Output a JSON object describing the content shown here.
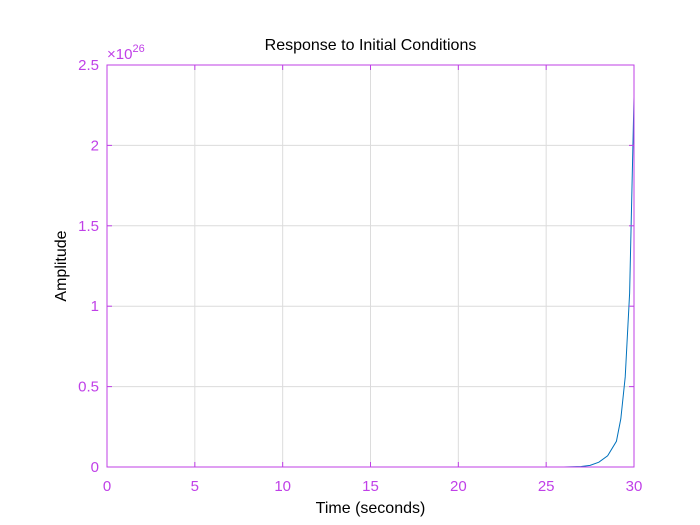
{
  "chart_data": {
    "type": "line",
    "title": "Response to Initial Conditions",
    "xlabel": "Time (seconds)",
    "ylabel": "Amplitude",
    "xlim": [
      0,
      30
    ],
    "ylim": [
      0,
      2.5
    ],
    "xticks": [
      "0",
      "5",
      "10",
      "15",
      "20",
      "25",
      "30"
    ],
    "yticks": [
      "0",
      "0.5",
      "1",
      "1.5",
      "2",
      "2.5"
    ],
    "y_multiplier": {
      "base": "×10",
      "exponent": "26"
    },
    "grid": true,
    "series": [
      {
        "x": [
          0,
          5,
          10,
          15,
          20,
          24,
          26,
          27,
          27.5,
          28,
          28.5,
          29,
          29.25,
          29.5,
          29.75,
          30
        ],
        "y": [
          0,
          0,
          0,
          0,
          0,
          0,
          0.0,
          0.003,
          0.01,
          0.03,
          0.07,
          0.16,
          0.3,
          0.56,
          1.08,
          2.3
        ],
        "color": "#0072BD"
      }
    ],
    "colors": {
      "axes": "#BF3FE6",
      "tick_text": "#C040E8",
      "grid": "#DCDCDC",
      "line": "#0072BD"
    }
  }
}
